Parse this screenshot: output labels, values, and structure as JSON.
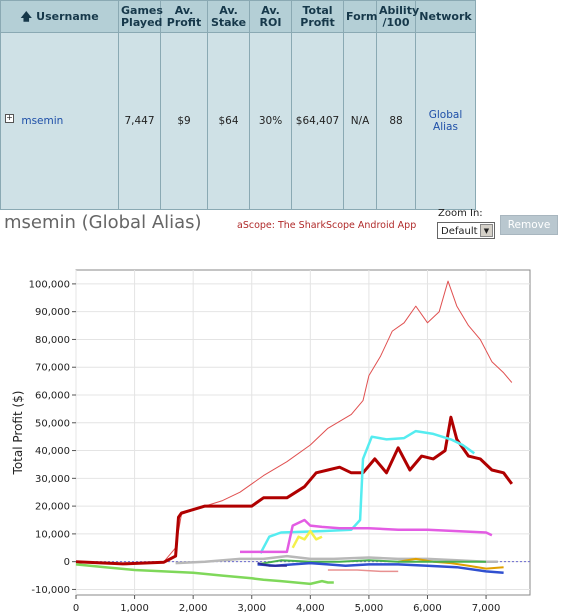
{
  "table": {
    "headers": [
      {
        "key": "username",
        "label": "Username"
      },
      {
        "key": "games",
        "label": "Games Played"
      },
      {
        "key": "avprofit",
        "label": "Av. Profit"
      },
      {
        "key": "avstake",
        "label": "Av. Stake"
      },
      {
        "key": "avroi",
        "label": "Av. ROI"
      },
      {
        "key": "totalprofit",
        "label": "Total Profit"
      },
      {
        "key": "form",
        "label": "Form"
      },
      {
        "key": "ability",
        "label": "Ability /100"
      },
      {
        "key": "network",
        "label": "Network"
      }
    ],
    "sort_icon": "up-arrow-icon",
    "row": {
      "expand_icon": "plus-box-icon",
      "username": "msemin",
      "games": "7,447",
      "avprofit": "$9",
      "avstake": "$64",
      "avroi": "30%",
      "totalprofit": "$64,407",
      "form": "N/A",
      "ability": "88",
      "network": "Global Alias"
    }
  },
  "header": {
    "alias_title": "msemin (Global Alias)",
    "ascope_link": "aScope: The SharkScope Android App",
    "zoom_label": "Zoom In:",
    "zoom_value": "Default",
    "remove_button": "Remove"
  },
  "colors": {
    "table_header_bg": "#b4cfd6",
    "table_row_bg": "#cfe1e6",
    "link": "#1e4fa8",
    "accent_red": "#b02a2a"
  },
  "chart_data": {
    "type": "line",
    "xlabel": "Games Played",
    "ylabel": "Total Profit ($)",
    "xlim": [
      0,
      7750
    ],
    "ylim": [
      -12000,
      105000
    ],
    "xticks": [
      0,
      1000,
      2000,
      3000,
      4000,
      5000,
      6000,
      7000
    ],
    "xtick_labels": [
      "0",
      "1,000",
      "2,000",
      "3,000",
      "4,000",
      "5,000",
      "6,000",
      "7,000"
    ],
    "yticks": [
      -10000,
      0,
      10000,
      20000,
      30000,
      40000,
      50000,
      60000,
      70000,
      80000,
      90000,
      100000
    ],
    "ytick_labels": [
      "-10,000",
      "0",
      "10,000",
      "20,000",
      "30,000",
      "40,000",
      "50,000",
      "60,000",
      "70,000",
      "80,000",
      "90,000",
      "100,000"
    ],
    "grid": true,
    "series": [
      {
        "color": "#e05050",
        "width": 1,
        "x": [
          0,
          800,
          1500,
          1700,
          1800,
          2200,
          2500,
          2800,
          3200,
          3600,
          4000,
          4300,
          4700,
          4900,
          5000,
          5200,
          5400,
          5600,
          5800,
          6000,
          6200,
          6350,
          6500,
          6700,
          6900,
          7100,
          7300,
          7440
        ],
        "y": [
          0,
          -1000,
          0,
          5000,
          17000,
          20000,
          22000,
          25000,
          31000,
          36000,
          42000,
          48000,
          53000,
          58000,
          67000,
          74000,
          83000,
          86000,
          92000,
          86000,
          90000,
          101000,
          92000,
          85000,
          80000,
          72000,
          68000,
          64500
        ]
      },
      {
        "color": "#b00000",
        "width": 3,
        "x": [
          0,
          800,
          1500,
          1700,
          1750,
          1800,
          2200,
          2600,
          3000,
          3200,
          3600,
          3900,
          4100,
          4300,
          4500,
          4700,
          4900,
          5100,
          5300,
          5500,
          5700,
          5900,
          6100,
          6300,
          6400,
          6500,
          6700,
          6900,
          7100,
          7300,
          7440
        ],
        "y": [
          0,
          -800,
          -200,
          2000,
          16000,
          17500,
          20000,
          20000,
          20000,
          23000,
          23000,
          27000,
          32000,
          33000,
          34000,
          32000,
          32000,
          37000,
          32000,
          41000,
          33000,
          38000,
          37000,
          40000,
          52000,
          44000,
          38000,
          37000,
          33000,
          32000,
          28000
        ]
      },
      {
        "color": "#55ecf0",
        "width": 2.5,
        "x": [
          3150,
          3300,
          3500,
          4200,
          4700,
          4850,
          4900,
          5050,
          5300,
          5600,
          5800,
          6100,
          6400,
          6600,
          6800
        ],
        "y": [
          3000,
          9000,
          10500,
          11000,
          11500,
          15000,
          37000,
          45000,
          44000,
          44500,
          47000,
          46000,
          44000,
          42000,
          39000
        ]
      },
      {
        "color": "#e35ce3",
        "width": 2.5,
        "x": [
          2800,
          3600,
          3700,
          3900,
          4000,
          4200,
          4500,
          5000,
          5500,
          6000,
          6500,
          7000,
          7100
        ],
        "y": [
          3500,
          3500,
          13000,
          15000,
          13000,
          12500,
          12000,
          12000,
          11500,
          11500,
          11000,
          10500,
          9500
        ]
      },
      {
        "color": "#f4f04c",
        "width": 2.5,
        "x": [
          3700,
          3800,
          3900,
          4000,
          4100,
          4200
        ],
        "y": [
          5000,
          9000,
          8000,
          11000,
          8000,
          9000
        ]
      },
      {
        "color": "#b8b8b8",
        "width": 2.5,
        "x": [
          1700,
          2200,
          2800,
          3200,
          3600,
          4000,
          4400,
          5000,
          5500,
          6000,
          6500,
          7000,
          7200
        ],
        "y": [
          -500,
          0,
          1000,
          1000,
          2000,
          1000,
          1000,
          1500,
          1000,
          1000,
          500,
          0,
          0
        ]
      },
      {
        "color": "#e0a000",
        "width": 2,
        "x": [
          5500,
          5800,
          6100,
          6400,
          6700,
          7000,
          7300
        ],
        "y": [
          0,
          1000,
          0,
          -500,
          -1500,
          -2500,
          -2000
        ]
      },
      {
        "color": "#7fd85a",
        "width": 2.5,
        "x": [
          0,
          500,
          1000,
          1500,
          2000,
          2500,
          3000,
          3200,
          3500,
          4000,
          4200,
          4300,
          4400
        ],
        "y": [
          -1000,
          -2000,
          -3000,
          -3500,
          -4000,
          -5000,
          -6000,
          -6500,
          -7000,
          -8000,
          -7000,
          -7500,
          -7500
        ]
      },
      {
        "color": "#47b04d",
        "width": 2,
        "x": [
          3100,
          3500,
          4000,
          4500,
          5000,
          5500,
          6000,
          6500,
          7000
        ],
        "y": [
          -1000,
          500,
          0,
          0,
          500,
          0,
          0,
          0,
          0
        ]
      },
      {
        "color": "#3050d0",
        "width": 2.5,
        "x": [
          3100,
          3400,
          3700,
          4000,
          4300,
          4600,
          5000,
          5500,
          6000,
          6500,
          7000,
          7300
        ],
        "y": [
          -1000,
          -1500,
          -1000,
          -500,
          -1000,
          -1500,
          -1000,
          -1000,
          -1500,
          -2000,
          -3500,
          -4000
        ]
      },
      {
        "color": "#2a2a9a",
        "width": 2,
        "x": [
          3100,
          3300,
          3600
        ],
        "y": [
          -500,
          -1500,
          -1500
        ]
      },
      {
        "color": "#e89090",
        "width": 1.5,
        "x": [
          4300,
          4800,
          5200,
          5500
        ],
        "y": [
          -3000,
          -3000,
          -3500,
          -3500
        ]
      }
    ]
  }
}
